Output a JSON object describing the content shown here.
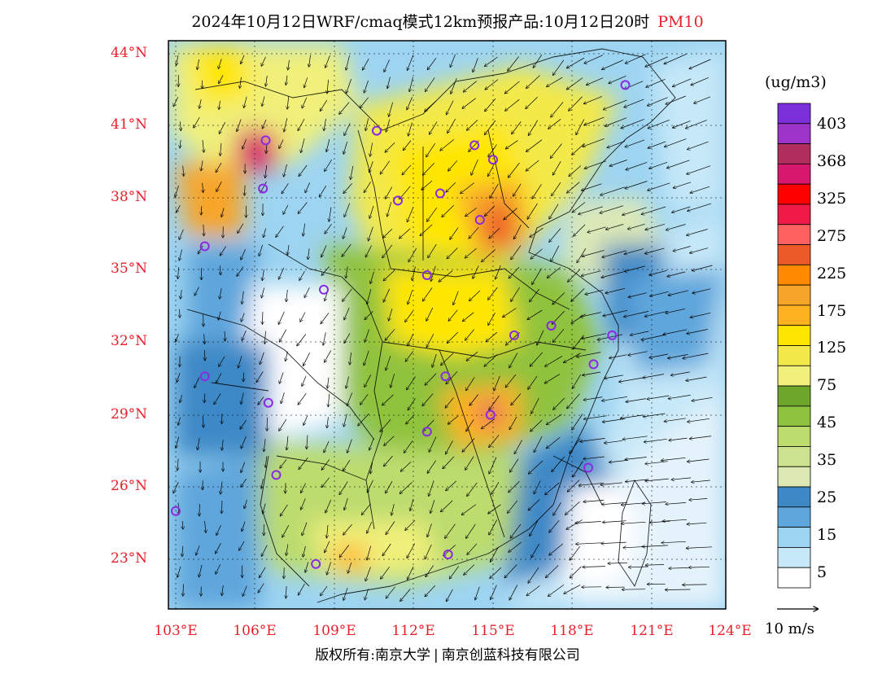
{
  "title": {
    "main": "2024年10月12日WRF/cmaq模式12km预报产品:10月12日20时",
    "variable": "PM10"
  },
  "colors": {
    "title_var": "#e8202a",
    "axis_labels": "#e8202a",
    "city_markers": "#8a2be2",
    "frame": "#000000"
  },
  "axes": {
    "lat_labels": [
      "44°N",
      "41°N",
      "38°N",
      "35°N",
      "32°N",
      "29°N",
      "26°N",
      "23°N"
    ],
    "lon_labels": [
      "103°E",
      "106°E",
      "109°E",
      "112°E",
      "115°E",
      "118°E",
      "121°E",
      "124°E"
    ]
  },
  "legend": {
    "unit": "(ug/m3)",
    "labels": [
      "403",
      "368",
      "325",
      "275",
      "225",
      "175",
      "125",
      "75",
      "45",
      "35",
      "25",
      "15",
      "5"
    ],
    "colors_top_to_bottom": [
      "#7a2fd8",
      "#9d34c9",
      "#b02d5c",
      "#d8186e",
      "#ff0000",
      "#f01a46",
      "#ff6060",
      "#ec5a2a",
      "#ff8a00",
      "#f7a52a",
      "#ffb21f",
      "#ffe600",
      "#f3e94a",
      "#f0f07a",
      "#6ea52b",
      "#8fc23e",
      "#bcdc6e",
      "#cde28e",
      "#dde9b5",
      "#3e88c6",
      "#5fa6dc",
      "#9dd4f1",
      "#c6e8f8",
      "#ffffff"
    ],
    "vector_reference": "10 m/s"
  },
  "cities": [
    {
      "name": "c1",
      "lon": 120.0,
      "lat": 42.7
    },
    {
      "name": "c2",
      "lon": 110.6,
      "lat": 40.8
    },
    {
      "name": "c3",
      "lon": 106.4,
      "lat": 40.4
    },
    {
      "name": "c4",
      "lon": 114.3,
      "lat": 40.2
    },
    {
      "name": "c5",
      "lon": 115.0,
      "lat": 39.6
    },
    {
      "name": "c6",
      "lon": 106.3,
      "lat": 38.4
    },
    {
      "name": "c7",
      "lon": 111.4,
      "lat": 37.9
    },
    {
      "name": "c8",
      "lon": 113.0,
      "lat": 38.2
    },
    {
      "name": "c9",
      "lon": 114.5,
      "lat": 37.1
    },
    {
      "name": "c10",
      "lon": 104.1,
      "lat": 36.0
    },
    {
      "name": "c11",
      "lon": 112.5,
      "lat": 34.8
    },
    {
      "name": "c12",
      "lon": 108.6,
      "lat": 34.2
    },
    {
      "name": "c13",
      "lon": 117.2,
      "lat": 32.7
    },
    {
      "name": "c14",
      "lon": 115.8,
      "lat": 32.3
    },
    {
      "name": "c15",
      "lon": 119.5,
      "lat": 32.3
    },
    {
      "name": "c16",
      "lon": 118.8,
      "lat": 31.1
    },
    {
      "name": "c17",
      "lon": 113.2,
      "lat": 30.6
    },
    {
      "name": "c18",
      "lon": 104.1,
      "lat": 30.6
    },
    {
      "name": "c19",
      "lon": 106.5,
      "lat": 29.5
    },
    {
      "name": "c20",
      "lon": 114.9,
      "lat": 29.0
    },
    {
      "name": "c21",
      "lon": 112.5,
      "lat": 28.3
    },
    {
      "name": "c22",
      "lon": 118.6,
      "lat": 26.8
    },
    {
      "name": "c23",
      "lon": 106.8,
      "lat": 26.5
    },
    {
      "name": "c24",
      "lon": 103.0,
      "lat": 25.0
    },
    {
      "name": "c25",
      "lon": 113.3,
      "lat": 23.2
    },
    {
      "name": "c26",
      "lon": 108.3,
      "lat": 22.8
    }
  ],
  "copyright": {
    "left": "版权所有:南京大学",
    "right": "南京创蓝科技有限公司"
  }
}
